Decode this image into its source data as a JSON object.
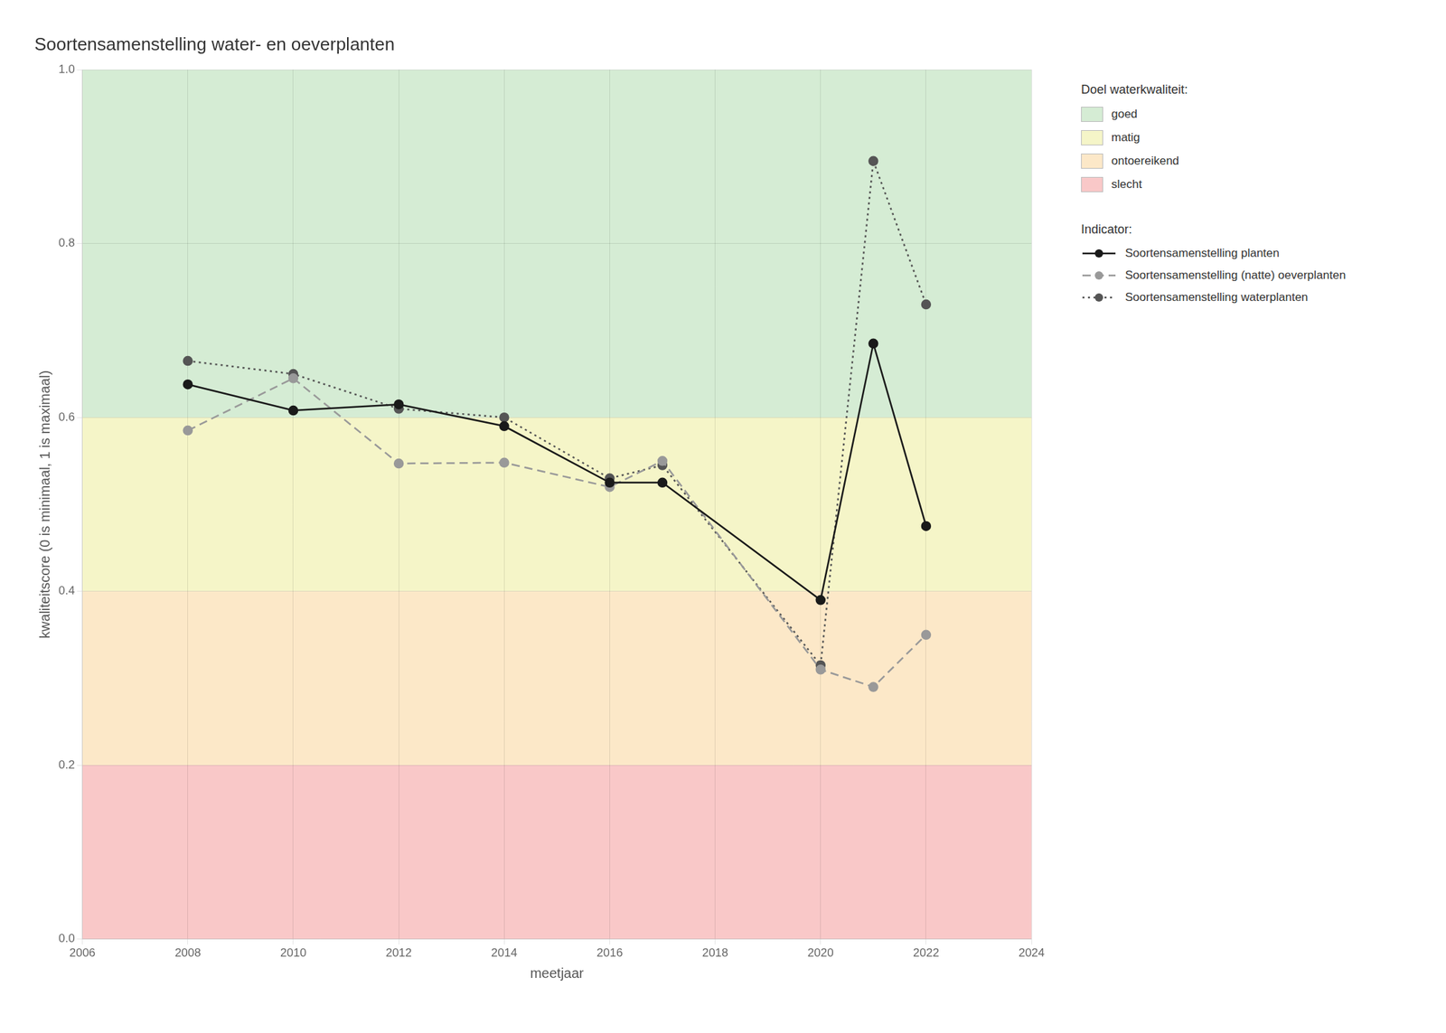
{
  "chart_data": {
    "type": "line",
    "title": "Soortensamenstelling water- en oeverplanten",
    "x_label": "meetjaar",
    "y_label": "kwaliteitscore (0 is minimaal, 1 is maximaal)",
    "xlim": [
      2006,
      2024
    ],
    "ylim": [
      0.0,
      1.0
    ],
    "xticks": [
      2006,
      2008,
      2010,
      2012,
      2014,
      2016,
      2018,
      2020,
      2022,
      2024
    ],
    "yticks": [
      {
        "value": 0.0,
        "label": "0.0"
      },
      0.2,
      0.4,
      0.6,
      0.8,
      {
        "value": 1.0,
        "label": "1.0"
      }
    ],
    "grid": true,
    "legend": "right",
    "zones_title": "Doel waterkwaliteit:",
    "zones": [
      {
        "name": "goed",
        "from": 0.6,
        "to": 1.0,
        "color": "#d5ecd4"
      },
      {
        "name": "matig",
        "from": 0.4,
        "to": 0.6,
        "color": "#f5f5c8"
      },
      {
        "name": "ontoereikend",
        "from": 0.2,
        "to": 0.4,
        "color": "#fce8c8"
      },
      {
        "name": "slecht",
        "from": 0.0,
        "to": 0.2,
        "color": "#f9c8c8"
      }
    ],
    "series_title": "Indicator:",
    "series": [
      {
        "name": "Soortensamenstelling planten",
        "x": [
          2008,
          2010,
          2012,
          2014,
          2016,
          2017,
          2020,
          2021,
          2022
        ],
        "values": [
          0.638,
          0.608,
          0.615,
          0.59,
          0.525,
          0.525,
          0.39,
          0.685,
          0.475
        ],
        "color": "#1a1a1a",
        "line_style": "solid",
        "marker": "circle"
      },
      {
        "name": "Soortensamenstelling (natte) oeverplanten",
        "x": [
          2008,
          2010,
          2012,
          2014,
          2016,
          2017,
          2020,
          2021,
          2022
        ],
        "values": [
          0.585,
          0.645,
          0.547,
          0.548,
          0.52,
          0.55,
          0.31,
          0.29,
          0.35
        ],
        "color": "#999999",
        "line_style": "dashed",
        "marker": "circle"
      },
      {
        "name": "Soortensamenstelling waterplanten",
        "x": [
          2008,
          2010,
          2012,
          2014,
          2016,
          2017,
          2020,
          2021,
          2022
        ],
        "values": [
          0.665,
          0.65,
          0.61,
          0.6,
          0.53,
          0.545,
          0.315,
          0.895,
          0.73
        ],
        "color": "#555555",
        "line_style": "dotted",
        "marker": "circle"
      }
    ]
  }
}
